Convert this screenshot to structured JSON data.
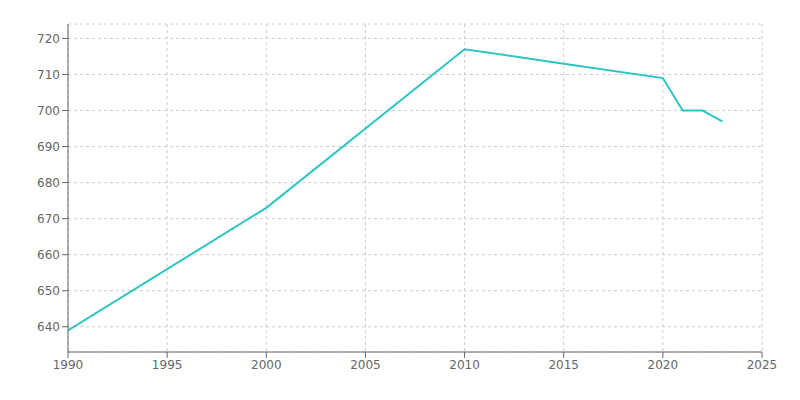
{
  "chart_data": {
    "type": "line",
    "x": [
      1990,
      2000,
      2010,
      2015,
      2020,
      2021,
      2022,
      2023
    ],
    "values": [
      639,
      673,
      717,
      713,
      709,
      700,
      700,
      697
    ],
    "color": "#2ec4c4",
    "xlim": [
      1990,
      2025
    ],
    "ylim": [
      633,
      724
    ],
    "xticks": [
      1990,
      1995,
      2000,
      2005,
      2010,
      2015,
      2020,
      2025
    ],
    "yticks": [
      640,
      650,
      660,
      670,
      680,
      690,
      700,
      710,
      720
    ],
    "grid": true
  }
}
